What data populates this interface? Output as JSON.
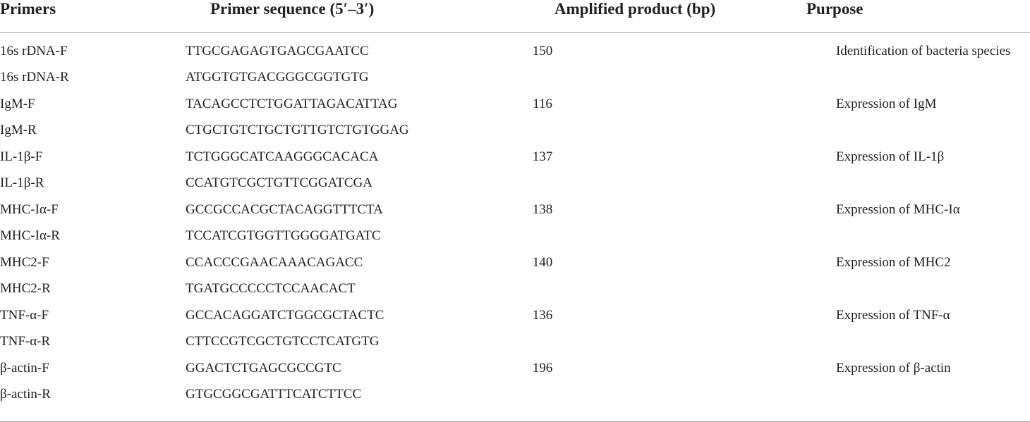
{
  "table": {
    "headers": {
      "primers": "Primers",
      "sequence": "Primer sequence (5′–3′)",
      "product": "Amplified product (bp)",
      "purpose": "Purpose"
    },
    "rows": [
      {
        "primer": "16s rDNA-F",
        "sequence": "TTGCGAGAGTGAGCGAATCC",
        "product": "150",
        "purpose": "Identification of bacteria species"
      },
      {
        "primer": "16s rDNA-R",
        "sequence": "ATGGTGTGACGGGCGGTGTG",
        "product": "",
        "purpose": ""
      },
      {
        "primer": "IgM-F",
        "sequence": "TACAGCCTCTGGATTAGACATTAG",
        "product": "116",
        "purpose": "Expression of IgM"
      },
      {
        "primer": "IgM-R",
        "sequence": "CTGCTGTCTGCTGTTGTCTGTGGAG",
        "product": "",
        "purpose": ""
      },
      {
        "primer": "IL-1β-F",
        "sequence": "TCTGGGCATCAAGGGCACACA",
        "product": "137",
        "purpose": "Expression of IL-1β"
      },
      {
        "primer": "IL-1β-R",
        "sequence": "CCATGTCGCTGTTCGGATCGA",
        "product": "",
        "purpose": ""
      },
      {
        "primer": "MHC-Iα-F",
        "sequence": "GCCGCCACGCTACAGGTTTCTA",
        "product": "138",
        "purpose": "Expression of MHC-Iα"
      },
      {
        "primer": "MHC-Iα-R",
        "sequence": "TCCATCGTGGTTGGGGATGATC",
        "product": "",
        "purpose": ""
      },
      {
        "primer": "MHC2-F",
        "sequence": "CCACCCGAACAAACAGACC",
        "product": "140",
        "purpose": "Expression of MHC2"
      },
      {
        "primer": "MHC2-R",
        "sequence": "TGATGCCCCCTCCAACACT",
        "product": "",
        "purpose": ""
      },
      {
        "primer": "TNF-α-F",
        "sequence": "GCCACAGGATCTGGCGCTACTC",
        "product": "136",
        "purpose": "Expression of TNF-α"
      },
      {
        "primer": "TNF-α-R",
        "sequence": "CTTCCGTCGCTGTCCTCATGTG",
        "product": "",
        "purpose": ""
      },
      {
        "primer": "β-actin-F",
        "sequence": "GGACTCTGAGCGCCGTC",
        "product": "196",
        "purpose": "Expression of β-actin"
      },
      {
        "primer": "β-actin-R",
        "sequence": "GTGCGGCGATTTCATCTTCC",
        "product": "",
        "purpose": ""
      }
    ]
  }
}
